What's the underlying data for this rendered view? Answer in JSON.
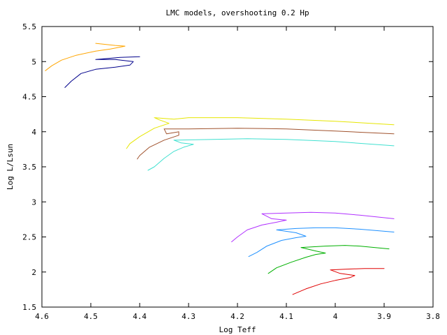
{
  "chart_data": {
    "type": "line",
    "title": "LMC models, overshooting 0.2 Hp",
    "xlabel": "Log Teff",
    "ylabel": "Log L/Lsun",
    "xlim": [
      4.6,
      3.8
    ],
    "ylim": [
      1.5,
      5.5
    ],
    "x_inverted": true,
    "grid": false,
    "legend": "none",
    "xticks": [
      "4.6",
      "4.5",
      "4.4",
      "4.3",
      "4.2",
      "4.1",
      "4",
      "3.9",
      "3.8"
    ],
    "yticks": [
      "1.5",
      "2",
      "2.5",
      "3",
      "3.5",
      "4",
      "4.5",
      "5",
      "5.5"
    ],
    "series": [
      {
        "color": "#ffa500",
        "points": [
          [
            4.593,
            4.87
          ],
          [
            4.58,
            4.94
          ],
          [
            4.56,
            5.02
          ],
          [
            4.53,
            5.09
          ],
          [
            4.49,
            5.15
          ],
          [
            4.46,
            5.18
          ],
          [
            4.43,
            5.22
          ],
          [
            4.45,
            5.23
          ],
          [
            4.49,
            5.26
          ]
        ]
      },
      {
        "color": "#00008b",
        "points": [
          [
            4.553,
            4.63
          ],
          [
            4.54,
            4.72
          ],
          [
            4.52,
            4.83
          ],
          [
            4.49,
            4.89
          ],
          [
            4.45,
            4.92
          ],
          [
            4.42,
            4.95
          ],
          [
            4.413,
            5.0
          ],
          [
            4.45,
            5.03
          ],
          [
            4.49,
            5.03
          ],
          [
            4.44,
            5.06
          ],
          [
            4.4,
            5.07
          ]
        ]
      },
      {
        "color": "#e6e600",
        "points": [
          [
            4.427,
            3.76
          ],
          [
            4.42,
            3.83
          ],
          [
            4.4,
            3.93
          ],
          [
            4.37,
            4.05
          ],
          [
            4.34,
            4.12
          ],
          [
            4.36,
            4.17
          ],
          [
            4.37,
            4.2
          ],
          [
            4.33,
            4.18
          ],
          [
            4.3,
            4.2
          ],
          [
            4.2,
            4.2
          ],
          [
            4.1,
            4.18
          ],
          [
            4.0,
            4.15
          ],
          [
            3.88,
            4.1
          ]
        ]
      },
      {
        "color": "#a0522d",
        "points": [
          [
            4.405,
            3.61
          ],
          [
            4.4,
            3.66
          ],
          [
            4.38,
            3.78
          ],
          [
            4.35,
            3.88
          ],
          [
            4.32,
            3.95
          ],
          [
            4.32,
            4.0
          ],
          [
            4.345,
            3.97
          ],
          [
            4.35,
            4.04
          ],
          [
            4.3,
            4.04
          ],
          [
            4.2,
            4.05
          ],
          [
            4.1,
            4.04
          ],
          [
            4.0,
            4.01
          ],
          [
            3.88,
            3.97
          ]
        ]
      },
      {
        "color": "#40e0d0",
        "points": [
          [
            4.383,
            3.45
          ],
          [
            4.37,
            3.5
          ],
          [
            4.35,
            3.62
          ],
          [
            4.33,
            3.72
          ],
          [
            4.31,
            3.78
          ],
          [
            4.29,
            3.82
          ],
          [
            4.315,
            3.84
          ],
          [
            4.33,
            3.88
          ],
          [
            4.25,
            3.89
          ],
          [
            4.18,
            3.9
          ],
          [
            4.1,
            3.89
          ],
          [
            4.0,
            3.86
          ],
          [
            3.88,
            3.8
          ]
        ]
      },
      {
        "color": "#b030ff",
        "points": [
          [
            4.212,
            2.43
          ],
          [
            4.2,
            2.5
          ],
          [
            4.18,
            2.6
          ],
          [
            4.15,
            2.67
          ],
          [
            4.12,
            2.71
          ],
          [
            4.1,
            2.74
          ],
          [
            4.13,
            2.76
          ],
          [
            4.15,
            2.83
          ],
          [
            4.1,
            2.84
          ],
          [
            4.05,
            2.85
          ],
          [
            4.0,
            2.84
          ],
          [
            3.95,
            2.81
          ],
          [
            3.88,
            2.76
          ]
        ]
      },
      {
        "color": "#1e90ff",
        "points": [
          [
            4.177,
            2.22
          ],
          [
            4.16,
            2.28
          ],
          [
            4.14,
            2.37
          ],
          [
            4.11,
            2.45
          ],
          [
            4.08,
            2.49
          ],
          [
            4.06,
            2.51
          ],
          [
            4.08,
            2.56
          ],
          [
            4.12,
            2.6
          ],
          [
            4.08,
            2.62
          ],
          [
            4.04,
            2.63
          ],
          [
            4.0,
            2.63
          ],
          [
            3.95,
            2.61
          ],
          [
            3.88,
            2.57
          ]
        ]
      },
      {
        "color": "#00b000",
        "points": [
          [
            4.137,
            1.98
          ],
          [
            4.12,
            2.06
          ],
          [
            4.09,
            2.14
          ],
          [
            4.06,
            2.21
          ],
          [
            4.04,
            2.25
          ],
          [
            4.02,
            2.27
          ],
          [
            4.04,
            2.3
          ],
          [
            4.07,
            2.35
          ],
          [
            4.02,
            2.37
          ],
          [
            3.98,
            2.38
          ],
          [
            3.95,
            2.37
          ],
          [
            3.92,
            2.35
          ],
          [
            3.89,
            2.33
          ]
        ]
      },
      {
        "color": "#e00000",
        "points": [
          [
            4.087,
            1.68
          ],
          [
            4.06,
            1.76
          ],
          [
            4.03,
            1.83
          ],
          [
            4.0,
            1.88
          ],
          [
            3.97,
            1.92
          ],
          [
            3.96,
            1.95
          ],
          [
            3.99,
            1.98
          ],
          [
            4.01,
            2.03
          ],
          [
            3.98,
            2.04
          ],
          [
            3.94,
            2.05
          ],
          [
            3.9,
            2.05
          ]
        ]
      }
    ]
  }
}
